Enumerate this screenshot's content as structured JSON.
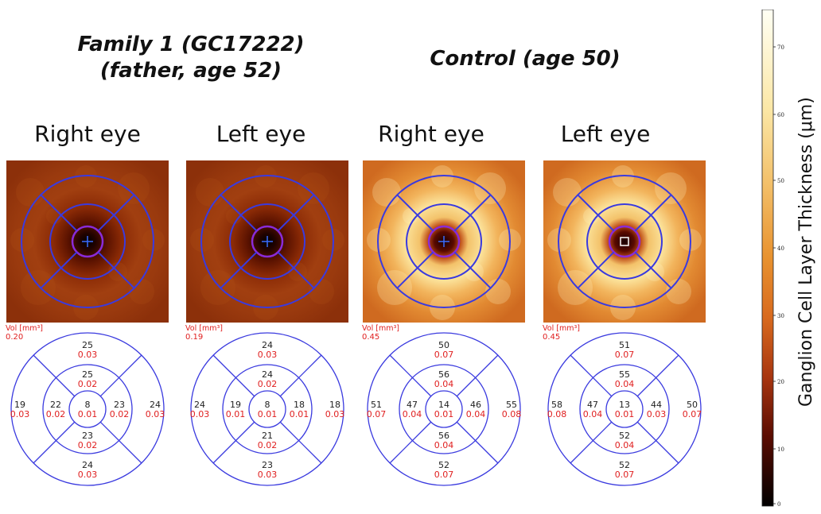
{
  "groups": {
    "family": {
      "line1": "Family 1 (GC17222)",
      "line2": "(father, age 52)"
    },
    "control": {
      "line1": "Control (age 50)"
    }
  },
  "eyes": [
    {
      "title": "Right eye",
      "vol_label": "Vol [mm³]",
      "vol": "0.20",
      "top": [
        "25",
        "0.03"
      ],
      "inner_top": [
        "25",
        "0.02"
      ],
      "left": [
        "19",
        "0.03"
      ],
      "inner_left": [
        "22",
        "0.02"
      ],
      "center": [
        "8",
        "0.01"
      ],
      "inner_right": [
        "23",
        "0.02"
      ],
      "right": [
        "24",
        "0.03"
      ],
      "inner_bottom": [
        "23",
        "0.02"
      ],
      "bottom": [
        "24",
        "0.03"
      ],
      "theme": "dark"
    },
    {
      "title": "Left eye",
      "vol_label": "Vol [mm³]",
      "vol": "0.19",
      "top": [
        "24",
        "0.03"
      ],
      "inner_top": [
        "24",
        "0.02"
      ],
      "left": [
        "24",
        "0.03"
      ],
      "inner_left": [
        "19",
        "0.01"
      ],
      "center": [
        "8",
        "0.01"
      ],
      "inner_right": [
        "18",
        "0.01"
      ],
      "right": [
        "18",
        "0.03"
      ],
      "inner_bottom": [
        "21",
        "0.02"
      ],
      "bottom": [
        "23",
        "0.03"
      ],
      "theme": "dark"
    },
    {
      "title": "Right eye",
      "vol_label": "Vol [mm³]",
      "vol": "0.45",
      "top": [
        "50",
        "0.07"
      ],
      "inner_top": [
        "56",
        "0.04"
      ],
      "left": [
        "51",
        "0.07"
      ],
      "inner_left": [
        "47",
        "0.04"
      ],
      "center": [
        "14",
        "0.01"
      ],
      "inner_right": [
        "46",
        "0.04"
      ],
      "right": [
        "55",
        "0.08"
      ],
      "inner_bottom": [
        "56",
        "0.04"
      ],
      "bottom": [
        "52",
        "0.07"
      ],
      "theme": "bright"
    },
    {
      "title": "Left eye",
      "vol_label": "Vol [mm³]",
      "vol": "0.45",
      "top": [
        "51",
        "0.07"
      ],
      "inner_top": [
        "55",
        "0.04"
      ],
      "left": [
        "58",
        "0.08"
      ],
      "inner_left": [
        "47",
        "0.04"
      ],
      "center": [
        "13",
        "0.01"
      ],
      "inner_right": [
        "44",
        "0.03"
      ],
      "right": [
        "50",
        "0.07"
      ],
      "inner_bottom": [
        "52",
        "0.04"
      ],
      "bottom": [
        "52",
        "0.07"
      ],
      "theme": "bright"
    }
  ],
  "colorbar": {
    "label": "Ganglion Cell Layer Thickness (μm)",
    "ticks": [
      "70",
      "60",
      "50",
      "40",
      "30",
      "20",
      "10",
      "0"
    ],
    "colors": {
      "top": "#fffff0",
      "mid": "#e07a1e",
      "bottom": "#000000"
    }
  },
  "colors": {
    "grid": "#3a3adf",
    "value": "#222222",
    "volume": "#e02020"
  }
}
